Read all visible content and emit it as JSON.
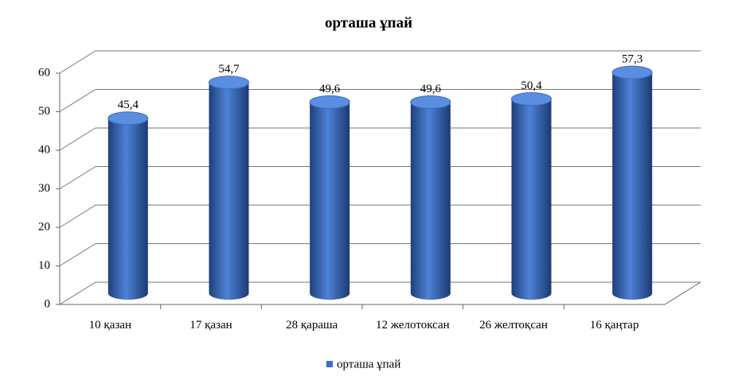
{
  "chart_data": {
    "type": "bar3d",
    "title": "орташа  ұпай",
    "categories": [
      "10 қазан",
      "17 қазан",
      "28 қараша",
      "12 желотоксан",
      "26 желтоқсан",
      "16 қаңтар"
    ],
    "series": [
      {
        "name": "орташа ұпай",
        "color": "#3a6fc4",
        "values": [
          45.4,
          54.7,
          49.6,
          49.6,
          50.4,
          57.3
        ],
        "value_labels": [
          "45,4",
          "54,7",
          "49,6",
          "49,6",
          "50,4",
          "57,3"
        ]
      }
    ],
    "ylim": [
      0,
      60
    ],
    "yticks": [
      0,
      10,
      20,
      30,
      40,
      50,
      60
    ],
    "grid": true,
    "legend": "bottom"
  }
}
